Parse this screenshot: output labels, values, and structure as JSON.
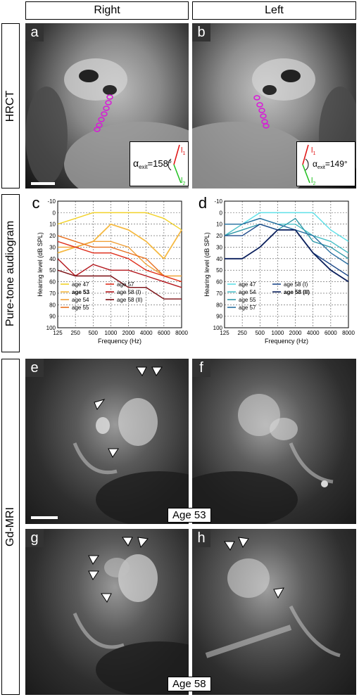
{
  "columns": {
    "right": "Right",
    "left": "Left"
  },
  "rows": {
    "hrct": "HRCT",
    "audiogram": "Pure-tone audiogram",
    "mri": "Gd-MRI"
  },
  "panels": {
    "a": "a",
    "b": "b",
    "c": "c",
    "d": "d",
    "e": "e",
    "f": "f",
    "g": "g",
    "h": "h"
  },
  "angle_right": {
    "alpha": "α",
    "sub": "exit",
    "value": "=158°",
    "l1": "l",
    "l1sub": "1",
    "l2": "l",
    "l2sub": "2"
  },
  "angle_left": {
    "alpha": "α",
    "sub": "exit",
    "value": "=149°",
    "l1": "l",
    "l1sub": "1",
    "l2": "l",
    "l2sub": "2"
  },
  "mri_labels": {
    "age53": "Age 53",
    "age58": "Age 58"
  },
  "chart_data": [
    {
      "type": "line",
      "panel": "c",
      "side": "Right",
      "xlabel": "Frequency (Hz)",
      "ylabel": "Hearing level (dB SPL)",
      "categories": [
        "125",
        "250",
        "500",
        "1000",
        "2000",
        "4000",
        "6000",
        "8000"
      ],
      "yticks": [
        "-10",
        "0",
        "10",
        "20",
        "30",
        "40",
        "50",
        "60",
        "70",
        "80",
        "90",
        "100"
      ],
      "ylim": [
        -10,
        100
      ],
      "y_inverted": true,
      "grid": true,
      "legend_position": "bottom-left",
      "series": [
        {
          "name": "age 47",
          "color": "#f2d22a",
          "values": [
            10,
            5,
            0,
            0,
            0,
            0,
            5,
            15
          ]
        },
        {
          "name": "age 53",
          "color": "#f5b942",
          "bold": true,
          "values": [
            35,
            30,
            25,
            10,
            15,
            25,
            40,
            15
          ]
        },
        {
          "name": "age 54",
          "color": "#f1a23a",
          "values": [
            30,
            30,
            25,
            25,
            30,
            45,
            55,
            55
          ]
        },
        {
          "name": "age 55",
          "color": "#e8701e",
          "values": [
            20,
            25,
            30,
            30,
            35,
            40,
            55,
            60
          ]
        },
        {
          "name": "age 57",
          "color": "#e0301e",
          "values": [
            25,
            30,
            35,
            35,
            40,
            50,
            55,
            60
          ]
        },
        {
          "name": "age 58 (I)",
          "color": "#b3151b",
          "values": [
            40,
            55,
            45,
            50,
            50,
            55,
            60,
            65
          ]
        },
        {
          "name": "age 58 (II)",
          "color": "#7a0d12",
          "values": [
            50,
            55,
            55,
            55,
            65,
            65,
            75,
            75
          ]
        }
      ]
    },
    {
      "type": "line",
      "panel": "d",
      "side": "Left",
      "xlabel": "Frequency (Hz)",
      "ylabel": "Hearing level (dB SPL)",
      "categories": [
        "125",
        "250",
        "500",
        "1000",
        "2000",
        "4000",
        "6000",
        "8000"
      ],
      "yticks": [
        "-10",
        "0",
        "10",
        "20",
        "30",
        "40",
        "50",
        "60",
        "70",
        "80",
        "90",
        "100"
      ],
      "ylim": [
        -10,
        100
      ],
      "y_inverted": true,
      "grid": true,
      "legend_position": "bottom-left",
      "series": [
        {
          "name": "age 47",
          "color": "#5fe0e8",
          "values": [
            10,
            10,
            0,
            0,
            0,
            0,
            15,
            25
          ]
        },
        {
          "name": "age 54",
          "color": "#4cc0c8",
          "values": [
            20,
            10,
            5,
            10,
            10,
            20,
            25,
            35
          ]
        },
        {
          "name": "age 55",
          "color": "#2f98a8",
          "values": [
            20,
            15,
            10,
            15,
            5,
            25,
            30,
            40
          ]
        },
        {
          "name": "age 57",
          "color": "#2a6fa0",
          "values": [
            10,
            10,
            5,
            10,
            15,
            20,
            35,
            45
          ]
        },
        {
          "name": "age 58 (I)",
          "color": "#1f4a8a",
          "values": [
            20,
            20,
            10,
            15,
            15,
            35,
            45,
            55
          ]
        },
        {
          "name": "age 58 (II)",
          "color": "#0a1f5c",
          "bold": true,
          "values": [
            40,
            40,
            30,
            15,
            15,
            35,
            50,
            60
          ]
        }
      ]
    }
  ]
}
